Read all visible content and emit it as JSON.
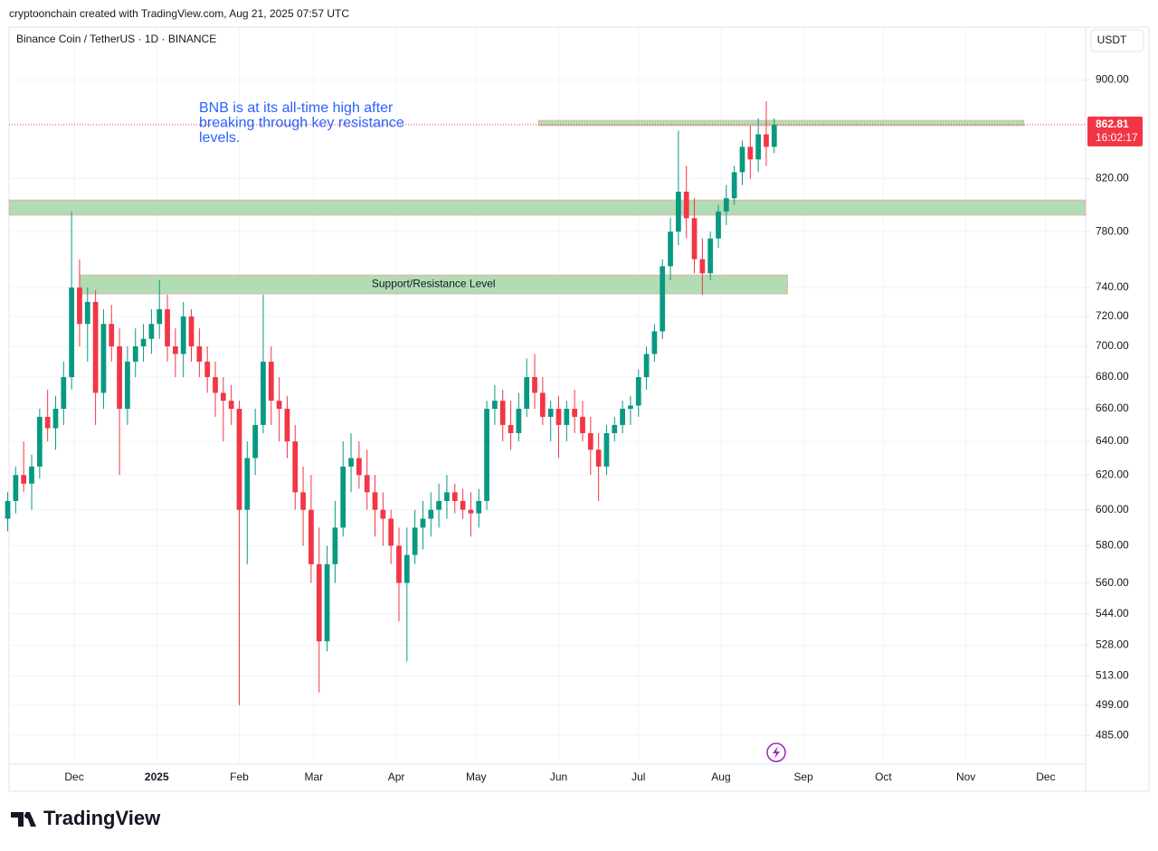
{
  "header": {
    "credit": "cryptoonchain created with TradingView.com, Aug 21, 2025 07:57 UTC"
  },
  "brand": "TradingView",
  "chart_data": {
    "type": "candlestick",
    "title": "Binance Coin / TetherUS · 1D · BINANCE",
    "currency": "USDT",
    "log_scale": true,
    "grid": true,
    "colors": {
      "up": "#089981",
      "down": "#f23645",
      "zone": "#a5d6a7",
      "text": "#2962ff"
    },
    "annotation": [
      "BNB is at its all-time high after",
      "breaking through key resistance",
      "levels."
    ],
    "countdown": "16:02:17",
    "zones": [
      {
        "y0": 862,
        "y1": 866.4,
        "x0": 174.5,
        "x1": 356.8
      },
      {
        "y0": 792.2,
        "y1": 803.7,
        "x0": -24.5,
        "x1": 380
      },
      {
        "y0": 735.5,
        "y1": 748.8,
        "x0": 2,
        "x1": 268,
        "label": "Support/Resistance Level"
      }
    ],
    "xlim": [
      -24.5,
      380
    ],
    "xticks": [
      {
        "value": 0,
        "label": "Dec"
      },
      {
        "value": 31,
        "label": "2025"
      },
      {
        "value": 62,
        "label": "Feb"
      },
      {
        "value": 90,
        "label": "Mar"
      },
      {
        "value": 121,
        "label": "Apr"
      },
      {
        "value": 151,
        "label": "May"
      },
      {
        "value": 182,
        "label": "Jun"
      },
      {
        "value": 212,
        "label": "Jul"
      },
      {
        "value": 243,
        "label": "Aug"
      },
      {
        "value": 274,
        "label": "Sep"
      },
      {
        "value": 304,
        "label": "Oct"
      },
      {
        "value": 335,
        "label": "Nov"
      },
      {
        "value": 365,
        "label": "Dec"
      }
    ],
    "ylim": [
      472,
      946
    ],
    "yticks": [
      {
        "value": 900,
        "label": "900.00"
      },
      {
        "value": 820,
        "label": "820.00"
      },
      {
        "value": 780,
        "label": "780.00"
      },
      {
        "value": 740,
        "label": "740.00"
      },
      {
        "value": 720,
        "label": "720.00"
      },
      {
        "value": 700,
        "label": "700.00"
      },
      {
        "value": 680,
        "label": "680.00"
      },
      {
        "value": 660,
        "label": "660.00"
      },
      {
        "value": 640,
        "label": "640.00"
      },
      {
        "value": 620,
        "label": "620.00"
      },
      {
        "value": 600,
        "label": "600.00"
      },
      {
        "value": 580,
        "label": "580.00"
      },
      {
        "value": 560,
        "label": "560.00"
      },
      {
        "value": 544,
        "label": "544.00"
      },
      {
        "value": 528,
        "label": "528.00"
      },
      {
        "value": 513,
        "label": "513.00"
      },
      {
        "value": 499,
        "label": "499.00"
      },
      {
        "value": 485,
        "label": "485.00"
      }
    ],
    "x": [
      -25,
      -22,
      -19,
      -16,
      -13,
      -10,
      -7,
      -4,
      -1,
      2,
      5,
      8,
      11,
      14,
      17,
      20,
      23,
      26,
      29,
      32,
      35,
      38,
      41,
      44,
      47,
      50,
      53,
      56,
      59,
      62,
      65,
      68,
      71,
      74,
      77,
      80,
      83,
      86,
      89,
      92,
      95,
      98,
      101,
      104,
      107,
      110,
      113,
      116,
      119,
      122,
      125,
      128,
      131,
      134,
      137,
      140,
      143,
      146,
      149,
      152,
      155,
      158,
      161,
      164,
      167,
      170,
      173,
      176,
      179,
      182,
      185,
      188,
      191,
      194,
      197,
      200,
      203,
      206,
      209,
      212,
      215,
      218,
      221,
      224,
      227,
      230,
      233,
      236,
      239,
      242,
      245,
      248,
      251,
      254,
      257,
      260,
      263
    ],
    "ohlc": [
      [
        595,
        610,
        588,
        605
      ],
      [
        605,
        625,
        598,
        620
      ],
      [
        620,
        640,
        610,
        615
      ],
      [
        615,
        632,
        600,
        625
      ],
      [
        625,
        660,
        618,
        655
      ],
      [
        655,
        672,
        640,
        648
      ],
      [
        648,
        668,
        635,
        660
      ],
      [
        660,
        690,
        650,
        680
      ],
      [
        680,
        795,
        672,
        740
      ],
      [
        740,
        760,
        700,
        715
      ],
      [
        715,
        740,
        690,
        730
      ],
      [
        730,
        738,
        650,
        670
      ],
      [
        670,
        725,
        660,
        715
      ],
      [
        715,
        728,
        690,
        700
      ],
      [
        700,
        712,
        620,
        660
      ],
      [
        660,
        700,
        650,
        690
      ],
      [
        690,
        712,
        680,
        700
      ],
      [
        700,
        715,
        690,
        705
      ],
      [
        705,
        725,
        695,
        715
      ],
      [
        715,
        745,
        705,
        725
      ],
      [
        725,
        735,
        690,
        700
      ],
      [
        700,
        712,
        680,
        695
      ],
      [
        695,
        730,
        680,
        720
      ],
      [
        720,
        725,
        690,
        700
      ],
      [
        700,
        712,
        680,
        690
      ],
      [
        690,
        700,
        670,
        680
      ],
      [
        680,
        690,
        655,
        670
      ],
      [
        670,
        680,
        640,
        665
      ],
      [
        665,
        675,
        650,
        660
      ],
      [
        660,
        665,
        499,
        600
      ],
      [
        600,
        640,
        570,
        630
      ],
      [
        630,
        660,
        620,
        650
      ],
      [
        650,
        735,
        645,
        690
      ],
      [
        690,
        700,
        650,
        665
      ],
      [
        665,
        680,
        640,
        660
      ],
      [
        660,
        668,
        630,
        640
      ],
      [
        640,
        650,
        600,
        610
      ],
      [
        610,
        625,
        580,
        600
      ],
      [
        600,
        620,
        560,
        570
      ],
      [
        570,
        590,
        505,
        530
      ],
      [
        530,
        580,
        525,
        570
      ],
      [
        570,
        605,
        560,
        590
      ],
      [
        590,
        640,
        585,
        625
      ],
      [
        625,
        645,
        610,
        630
      ],
      [
        630,
        640,
        612,
        620
      ],
      [
        620,
        635,
        600,
        610
      ],
      [
        610,
        620,
        585,
        600
      ],
      [
        600,
        610,
        580,
        595
      ],
      [
        595,
        600,
        570,
        580
      ],
      [
        580,
        590,
        540,
        560
      ],
      [
        560,
        590,
        520,
        575
      ],
      [
        575,
        600,
        570,
        590
      ],
      [
        590,
        605,
        578,
        595
      ],
      [
        595,
        610,
        585,
        600
      ],
      [
        600,
        615,
        590,
        605
      ],
      [
        605,
        620,
        595,
        610
      ],
      [
        610,
        615,
        598,
        605
      ],
      [
        605,
        612,
        595,
        600
      ],
      [
        600,
        610,
        585,
        598
      ],
      [
        598,
        612,
        590,
        605
      ],
      [
        605,
        665,
        600,
        660
      ],
      [
        660,
        675,
        650,
        665
      ],
      [
        665,
        672,
        640,
        650
      ],
      [
        650,
        665,
        635,
        645
      ],
      [
        645,
        670,
        640,
        660
      ],
      [
        660,
        692,
        655,
        680
      ],
      [
        680,
        695,
        660,
        670
      ],
      [
        670,
        680,
        650,
        655
      ],
      [
        655,
        665,
        640,
        660
      ],
      [
        660,
        668,
        630,
        650
      ],
      [
        650,
        665,
        640,
        660
      ],
      [
        660,
        672,
        645,
        655
      ],
      [
        655,
        665,
        640,
        645
      ],
      [
        645,
        655,
        620,
        635
      ],
      [
        635,
        645,
        605,
        625
      ],
      [
        625,
        650,
        620,
        645
      ],
      [
        645,
        655,
        640,
        650
      ],
      [
        650,
        665,
        645,
        660
      ],
      [
        660,
        668,
        650,
        662
      ],
      [
        662,
        685,
        655,
        680
      ],
      [
        680,
        700,
        672,
        695
      ],
      [
        695,
        715,
        690,
        710
      ],
      [
        710,
        760,
        705,
        755
      ],
      [
        755,
        790,
        745,
        780
      ],
      [
        780,
        858,
        770,
        810
      ],
      [
        810,
        830,
        775,
        790
      ],
      [
        790,
        805,
        750,
        760
      ],
      [
        760,
        775,
        735,
        750
      ],
      [
        750,
        780,
        745,
        775
      ],
      [
        775,
        800,
        768,
        795
      ],
      [
        795,
        815,
        785,
        805
      ],
      [
        805,
        830,
        800,
        825
      ],
      [
        825,
        850,
        815,
        845
      ],
      [
        845,
        862,
        820,
        835
      ],
      [
        835,
        868,
        825,
        855
      ],
      [
        855,
        882,
        830,
        845
      ],
      [
        845,
        868,
        840,
        862.81
      ]
    ]
  }
}
